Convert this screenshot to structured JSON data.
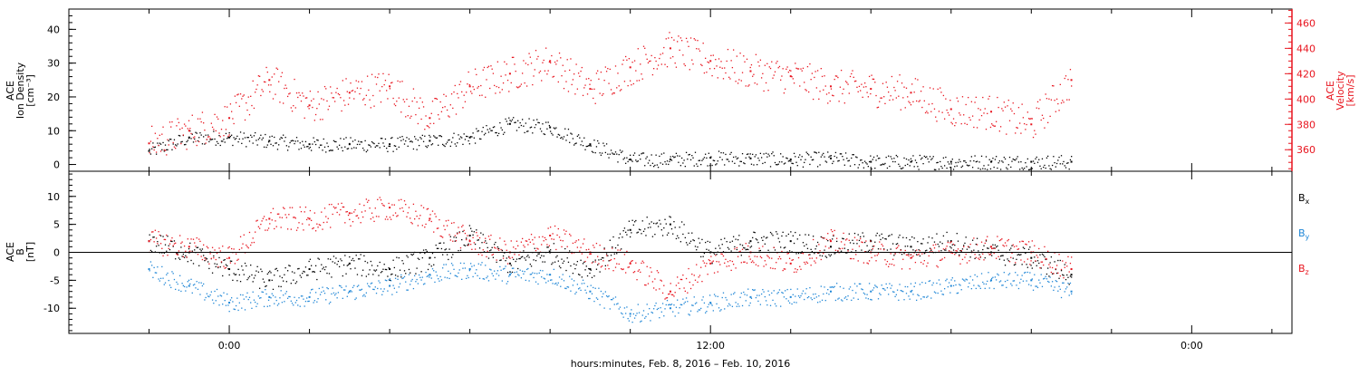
{
  "chart_data": [
    {
      "type": "scatter",
      "panel": "top",
      "left_axis": {
        "label_lines": [
          "ACE",
          "Ion Density",
          "[cm⁻³]"
        ],
        "ylim": [
          -2,
          46
        ],
        "ticks": [
          0,
          10,
          20,
          30,
          40
        ],
        "color": "#000000"
      },
      "right_axis": {
        "label_lines": [
          "ACE",
          "Velocity",
          "[km/s]"
        ],
        "ylim": [
          343,
          471
        ],
        "ticks": [
          360,
          380,
          400,
          420,
          440,
          460
        ],
        "color": "#e8141e"
      },
      "series": [
        {
          "axis": "left",
          "color": "#000000",
          "x_hours": [
            -2,
            -1,
            0,
            1,
            2,
            3,
            4,
            5,
            6,
            7,
            8,
            9,
            10,
            11,
            12,
            13,
            14,
            15,
            16,
            17,
            18,
            19,
            20,
            21
          ],
          "values": [
            4,
            8,
            8,
            7,
            6,
            6,
            6,
            7,
            8,
            12,
            11,
            6,
            1.5,
            1.5,
            2,
            1.8,
            1.5,
            1.8,
            0.8,
            0.8,
            0.8,
            0.8,
            0.8,
            0.8
          ]
        },
        {
          "axis": "right",
          "color": "#e8141e",
          "x_hours": [
            -2,
            -1,
            0,
            1,
            2,
            3,
            4,
            5,
            6,
            7,
            8,
            9,
            10,
            11,
            12,
            13,
            14,
            15,
            16,
            17,
            18,
            19,
            20,
            21
          ],
          "values": [
            365,
            375,
            385,
            415,
            395,
            405,
            410,
            385,
            410,
            420,
            430,
            408,
            425,
            440,
            430,
            422,
            418,
            410,
            408,
            405,
            392,
            390,
            380,
            415
          ]
        }
      ]
    },
    {
      "type": "scatter",
      "panel": "bottom",
      "left_axis": {
        "label_lines": [
          "ACE",
          "B",
          "[nT]"
        ],
        "ylim": [
          -14.5,
          14.5
        ],
        "ticks": [
          -10,
          -5,
          0,
          5,
          10
        ],
        "color": "#000000"
      },
      "zero_line": true,
      "legend": [
        {
          "text": "Bx",
          "main": "B",
          "sub": "x",
          "color": "#000000"
        },
        {
          "text": "By",
          "main": "B",
          "sub": "y",
          "color": "#1f86d6"
        },
        {
          "text": "Bz",
          "main": "B",
          "sub": "z",
          "color": "#e8141e"
        }
      ],
      "series": [
        {
          "name": "Bx",
          "color": "#000000",
          "x_hours": [
            -2,
            -1,
            0,
            1,
            2,
            3,
            4,
            5,
            6,
            7,
            8,
            9,
            10,
            11,
            12,
            13,
            14,
            15,
            16,
            17,
            18,
            19,
            20,
            21
          ],
          "values": [
            2,
            0,
            -3,
            -5,
            -3,
            -2,
            -3,
            -1,
            3,
            -2,
            0,
            -3,
            4,
            5,
            0,
            2,
            2,
            1,
            2,
            1,
            2,
            0,
            -1,
            -4
          ]
        },
        {
          "name": "By",
          "color": "#1f86d6",
          "x_hours": [
            -2,
            -1,
            0,
            1,
            2,
            3,
            4,
            5,
            6,
            7,
            8,
            9,
            10,
            11,
            12,
            13,
            14,
            15,
            16,
            17,
            18,
            19,
            20,
            21
          ],
          "values": [
            -3,
            -6,
            -9,
            -8,
            -8,
            -7,
            -6,
            -4,
            -3,
            -4,
            -4,
            -7,
            -11,
            -10,
            -9,
            -8,
            -8,
            -7,
            -7,
            -7,
            -6,
            -5,
            -5,
            -7
          ]
        },
        {
          "name": "Bz",
          "color": "#e8141e",
          "x_hours": [
            -2,
            -1,
            0,
            1,
            2,
            3,
            4,
            5,
            6,
            7,
            8,
            9,
            10,
            11,
            12,
            13,
            14,
            15,
            16,
            17,
            18,
            19,
            20,
            21
          ],
          "values": [
            2,
            1,
            -1,
            6,
            6,
            7,
            8,
            6,
            2,
            0,
            3,
            0,
            -2,
            -7,
            -2,
            0,
            -2,
            2,
            0,
            -1,
            0,
            1,
            0,
            -3
          ]
        }
      ]
    }
  ],
  "x_axis": {
    "xlim_hours": [
      -4,
      26.5
    ],
    "tick_labels": [
      {
        "hours": 0,
        "label": "0:00"
      },
      {
        "hours": 12,
        "label": "12:00"
      },
      {
        "hours": 24,
        "label": "0:00"
      }
    ],
    "minor_step_hours": 2,
    "title": "hours:minutes, Feb.  8, 2016 – Feb. 10, 2016"
  }
}
